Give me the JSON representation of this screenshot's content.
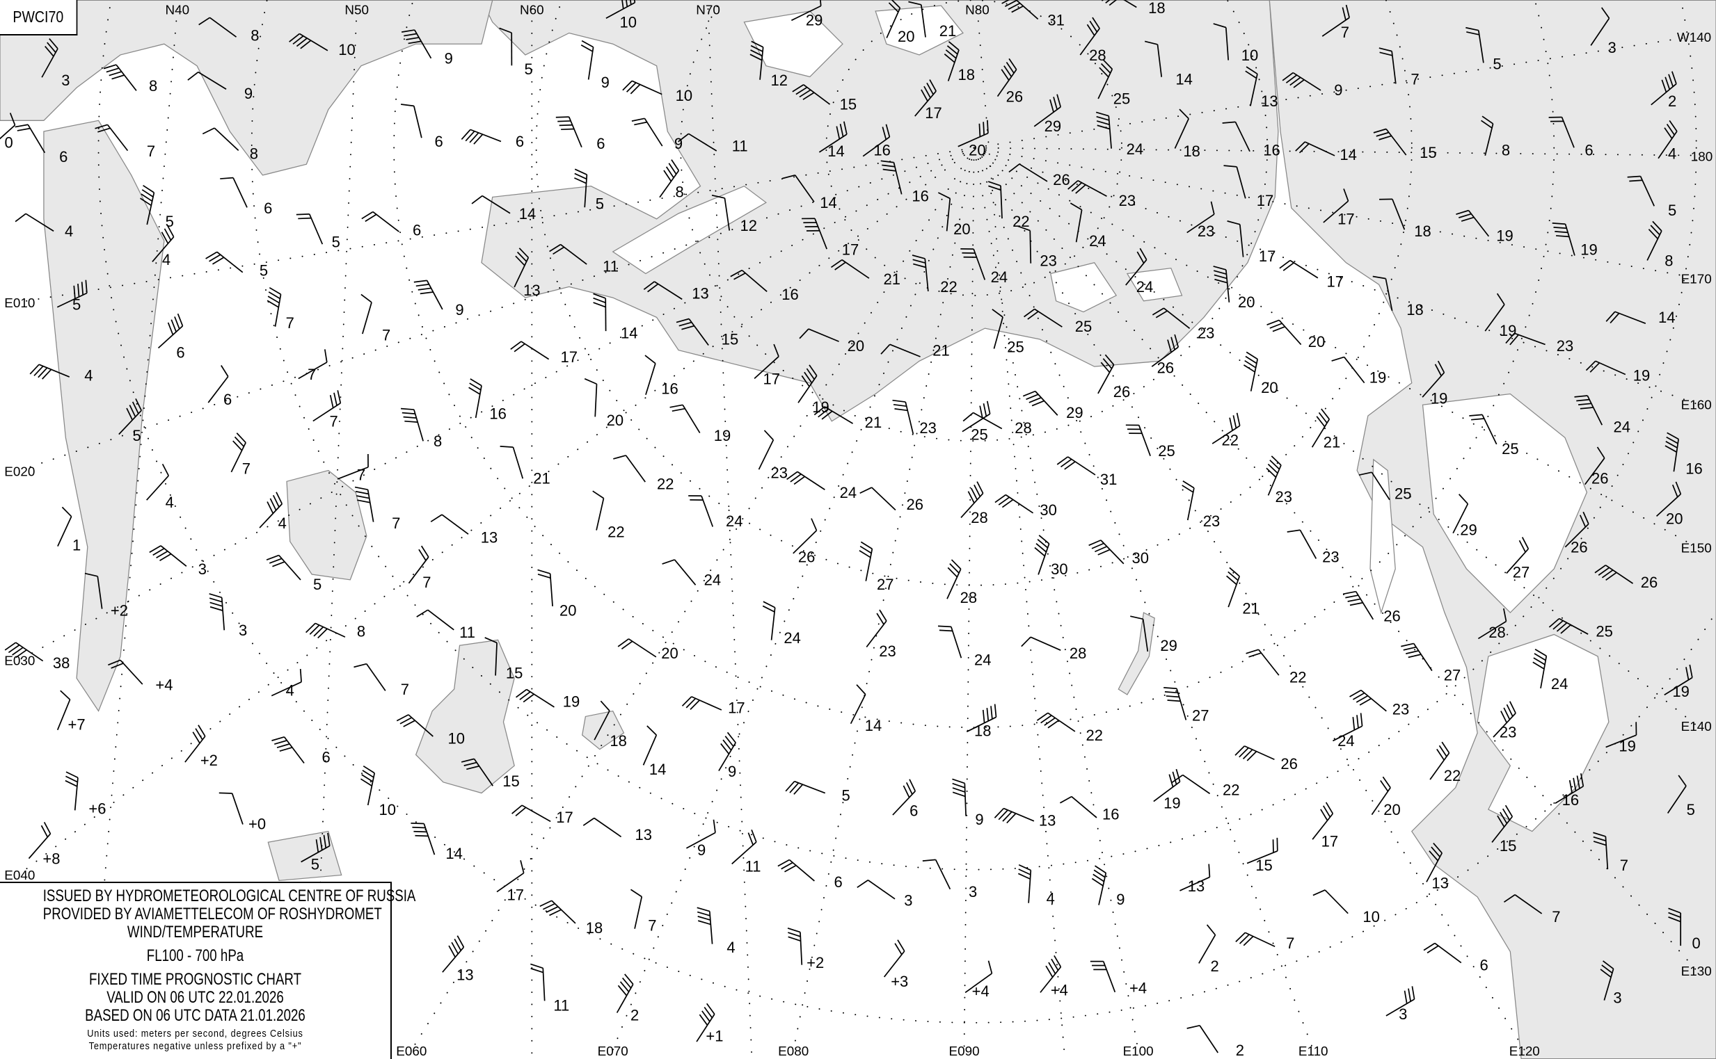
{
  "chart_code": "PWCI70",
  "info": {
    "issuer": "ISSUED BY HYDROMETEOROLOGICAL CENTRE OF RUSSIA",
    "provider": "PROVIDED BY AVIAMETTELECOM OF ROSHYDROMET",
    "product": "WIND/TEMPERATURE",
    "level": "FL100 - 700 hPa",
    "chart_type": "FIXED TIME PROGNOSTIC CHART",
    "valid": "VALID ON 06 UTC 22.01.2026",
    "based": "BASED ON 06 UTC DATA 21.01.2026",
    "units": "Units used: meters per second, degrees Celsius",
    "note": "Temperatures negative unless prefixed by a \"+\""
  },
  "colors": {
    "sea": "#e8e8e8",
    "land": "#ffffff",
    "coast": "#888888",
    "ink": "#000000"
  },
  "grid_labels": [
    "N40",
    "N50",
    "N60",
    "N70",
    "N80",
    "W140",
    "180",
    "E170",
    "E160",
    "E150",
    "E140",
    "E130",
    "E120",
    "E110",
    "E100",
    "E090",
    "E080",
    "E070",
    "E060",
    "E040",
    "E030",
    "E020",
    "E010"
  ],
  "temperatures": [
    "8",
    "10",
    "9",
    "5",
    "9",
    "10",
    "29",
    "20",
    "21",
    "31",
    "18",
    "10",
    "28",
    "14",
    "25",
    "5",
    "7",
    "3",
    "2",
    "4",
    "5",
    "8",
    "14",
    "9",
    "13",
    "7",
    "3",
    "8",
    "9",
    "0",
    "6",
    "7",
    "8",
    "6",
    "6",
    "6",
    "9",
    "11",
    "10",
    "12",
    "15",
    "14",
    "16",
    "17",
    "18",
    "20",
    "26",
    "29",
    "24",
    "18",
    "16",
    "14",
    "15",
    "8",
    "6",
    "26",
    "16",
    "23",
    "23",
    "17",
    "17",
    "18",
    "19",
    "19",
    "4",
    "5",
    "6",
    "4",
    "5",
    "5",
    "6",
    "5",
    "14",
    "8",
    "12",
    "14",
    "17",
    "20",
    "22",
    "24",
    "23",
    "17",
    "17",
    "5",
    "6",
    "7",
    "7",
    "9",
    "13",
    "11",
    "14",
    "13",
    "16",
    "21",
    "22",
    "24",
    "24",
    "20",
    "18",
    "20",
    "19",
    "23",
    "19",
    "4",
    "6",
    "7",
    "7",
    "8",
    "16",
    "17",
    "20",
    "16",
    "15",
    "17",
    "19",
    "20",
    "21",
    "25",
    "25",
    "26",
    "26",
    "23",
    "20",
    "19",
    "19",
    "24",
    "25",
    "26",
    "16",
    "5",
    "7",
    "7",
    "21",
    "22",
    "19",
    "23",
    "24",
    "21",
    "23",
    "25",
    "28",
    "29",
    "25",
    "22",
    "21",
    "31",
    "25",
    "23",
    "4",
    "4",
    "1",
    "3",
    "5",
    "7",
    "7",
    "13",
    "22",
    "24",
    "24",
    "26",
    "27",
    "26",
    "28",
    "30",
    "30",
    "30",
    "23",
    "23",
    "21",
    "29",
    "27",
    "20",
    "26",
    "26",
    "+2",
    "3",
    "8",
    "11",
    "20",
    "20",
    "24",
    "23",
    "28",
    "24",
    "28",
    "29",
    "26",
    "28",
    "25",
    "19",
    "38",
    "+4",
    "4",
    "7",
    "15",
    "19",
    "17",
    "14",
    "18",
    "22",
    "27",
    "22",
    "23",
    "27",
    "24",
    "23",
    "19",
    "+7",
    "+2",
    "6",
    "10",
    "18",
    "14",
    "9",
    "15",
    "24",
    "26",
    "22",
    "22",
    "20",
    "16",
    "5",
    "+6",
    "+0",
    "10",
    "17",
    "13",
    "9",
    "5",
    "6",
    "9",
    "13",
    "16",
    "19",
    "17",
    "15",
    "+8",
    "5",
    "14",
    "17",
    "18",
    "7",
    "11",
    "6",
    "3",
    "3",
    "4",
    "9",
    "13",
    "15",
    "13",
    "7",
    "10",
    "7",
    "0",
    "13",
    "11",
    "2",
    "4",
    "+2",
    "+3",
    "+4",
    "+4",
    "+4",
    "2",
    "7",
    "6",
    "3",
    "3",
    "+1",
    "2"
  ]
}
